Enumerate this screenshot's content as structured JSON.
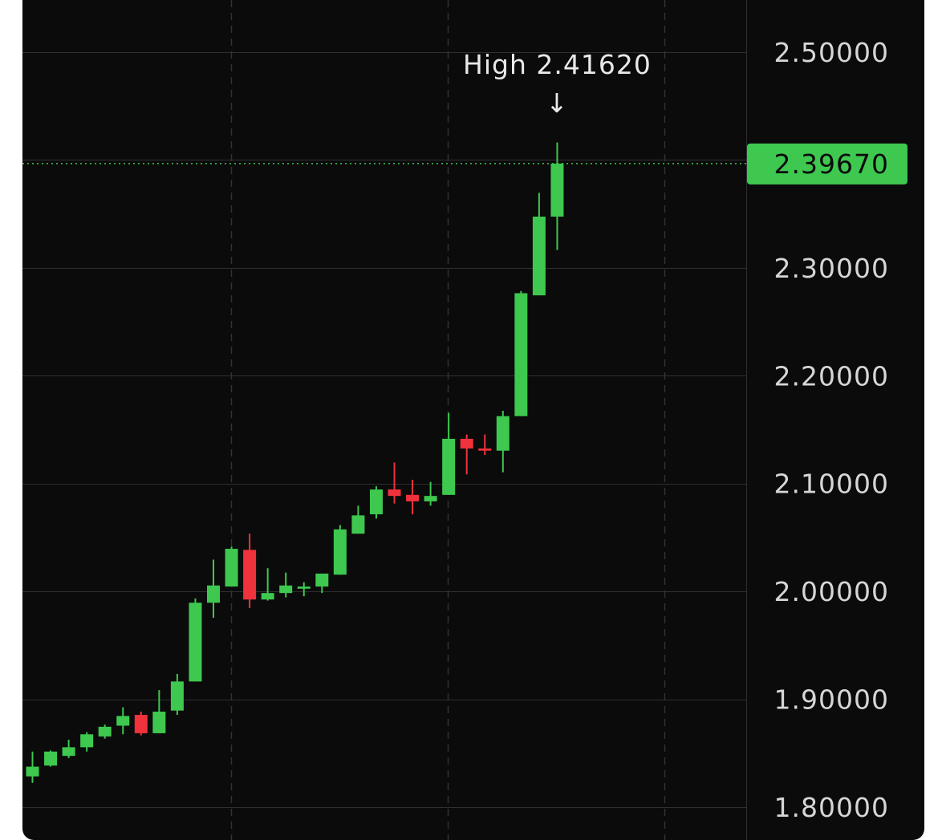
{
  "chart_data": {
    "type": "candlestick",
    "y_ticks": [
      "2.50000",
      "2.30000",
      "2.20000",
      "2.10000",
      "2.00000",
      "1.90000",
      "1.80000"
    ],
    "y_tick_values": [
      2.5,
      2.3,
      2.2,
      2.1,
      2.0,
      1.9,
      1.8
    ],
    "ylim": [
      1.77,
      2.54
    ],
    "grid": true,
    "up_color": "#3ec84f",
    "down_color": "#f0323c",
    "annotation": {
      "label": "High",
      "value_text": "2.41620",
      "value": 2.4162,
      "arrow": "↓"
    },
    "current_price": {
      "value": 2.3967,
      "label": "2.39670",
      "color": "#3ec84f"
    },
    "candles": [
      {
        "o": 1.8285,
        "h": 1.8515,
        "l": 1.8225,
        "c": 1.8375
      },
      {
        "o": 1.8385,
        "h": 1.8525,
        "l": 1.8375,
        "c": 1.8515
      },
      {
        "o": 1.8475,
        "h": 1.8625,
        "l": 1.8455,
        "c": 1.8555
      },
      {
        "o": 1.8555,
        "h": 1.8695,
        "l": 1.8515,
        "c": 1.8675
      },
      {
        "o": 1.8655,
        "h": 1.8765,
        "l": 1.8635,
        "c": 1.8745
      },
      {
        "o": 1.8755,
        "h": 1.8925,
        "l": 1.8675,
        "c": 1.8845
      },
      {
        "o": 1.8855,
        "h": 1.8885,
        "l": 1.8665,
        "c": 1.8685
      },
      {
        "o": 1.8685,
        "h": 1.9085,
        "l": 1.8685,
        "c": 1.8885
      },
      {
        "o": 1.8895,
        "h": 1.9235,
        "l": 1.8855,
        "c": 1.9165
      },
      {
        "o": 1.9165,
        "h": 1.9935,
        "l": 1.9165,
        "c": 1.9895
      },
      {
        "o": 1.9895,
        "h": 2.0295,
        "l": 1.9755,
        "c": 2.0055
      },
      {
        "o": 2.0045,
        "h": 2.0415,
        "l": 2.0045,
        "c": 2.0395
      },
      {
        "o": 2.0385,
        "h": 2.0535,
        "l": 1.9845,
        "c": 1.9925
      },
      {
        "o": 1.9925,
        "h": 2.0215,
        "l": 1.9915,
        "c": 1.9985
      },
      {
        "o": 1.9985,
        "h": 2.0175,
        "l": 1.9945,
        "c": 2.0055
      },
      {
        "o": 2.0025,
        "h": 2.0085,
        "l": 1.9955,
        "c": 2.0045
      },
      {
        "o": 2.0045,
        "h": 2.0165,
        "l": 1.9985,
        "c": 2.0165
      },
      {
        "o": 2.0155,
        "h": 2.0615,
        "l": 2.0155,
        "c": 2.0575
      },
      {
        "o": 2.0535,
        "h": 2.0795,
        "l": 2.0535,
        "c": 2.0705
      },
      {
        "o": 2.0715,
        "h": 2.0975,
        "l": 2.0675,
        "c": 2.0945
      },
      {
        "o": 2.0945,
        "h": 2.1195,
        "l": 2.0815,
        "c": 2.0885
      },
      {
        "o": 2.0895,
        "h": 2.1035,
        "l": 2.0715,
        "c": 2.0835
      },
      {
        "o": 2.0835,
        "h": 2.1015,
        "l": 2.0795,
        "c": 2.0885
      },
      {
        "o": 2.0895,
        "h": 2.1655,
        "l": 2.0895,
        "c": 2.1415
      },
      {
        "o": 2.1415,
        "h": 2.1455,
        "l": 2.1085,
        "c": 2.1325
      },
      {
        "o": 2.1325,
        "h": 2.1455,
        "l": 2.1265,
        "c": 2.1305
      },
      {
        "o": 2.1305,
        "h": 2.1675,
        "l": 2.1105,
        "c": 2.1625
      },
      {
        "o": 2.1625,
        "h": 2.2785,
        "l": 2.1625,
        "c": 2.2765
      },
      {
        "o": 2.2745,
        "h": 2.3695,
        "l": 2.2745,
        "c": 2.3475
      },
      {
        "o": 2.3475,
        "h": 2.4162,
        "l": 2.3165,
        "c": 2.3967
      }
    ]
  }
}
